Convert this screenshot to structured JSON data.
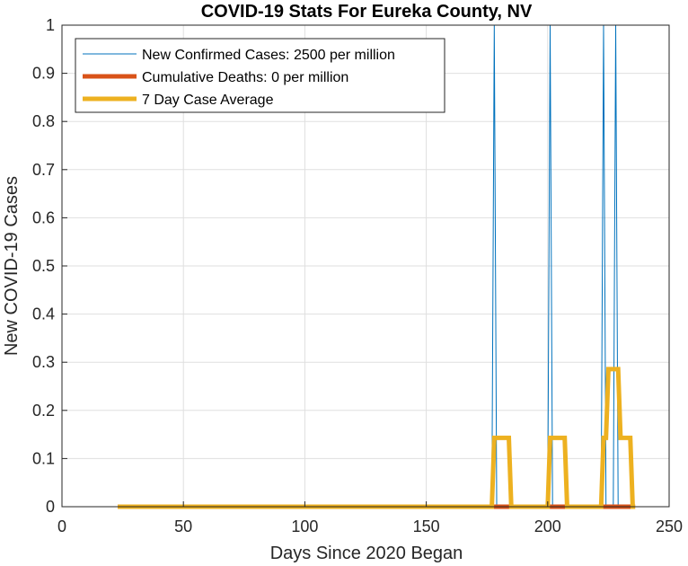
{
  "chart_data": {
    "type": "line",
    "title": "COVID-19 Stats For Eureka County, NV",
    "xlabel": "Days Since 2020 Began",
    "ylabel": "New COVID-19 Cases",
    "xlim": [
      0,
      250
    ],
    "ylim": [
      0,
      1
    ],
    "x_ticks": [
      "0",
      "50",
      "100",
      "150",
      "200",
      "250"
    ],
    "y_ticks": [
      "0",
      "0.1",
      "0.2",
      "0.3",
      "0.4",
      "0.5",
      "0.6",
      "0.7",
      "0.8",
      "0.9",
      "1"
    ],
    "grid": true,
    "legend_position": "top-left",
    "series": [
      {
        "name": "New Confirmed Cases: 2500 per million",
        "color": "#0072BD",
        "points": [
          [
            23,
            0
          ],
          [
            177,
            0
          ],
          [
            178,
            1
          ],
          [
            179,
            0
          ],
          [
            200,
            0
          ],
          [
            201,
            1
          ],
          [
            202,
            0
          ],
          [
            222,
            0
          ],
          [
            223,
            1
          ],
          [
            224,
            0
          ],
          [
            227,
            0
          ],
          [
            228,
            1
          ],
          [
            229,
            0
          ],
          [
            236,
            0
          ]
        ]
      },
      {
        "name": "Cumulative Deaths: 0 per million",
        "color": "#D95319",
        "points": [
          [
            23,
            0
          ],
          [
            236,
            0
          ]
        ]
      },
      {
        "name": "7 Day Case Average",
        "color": "#EDB120",
        "points": [
          [
            23,
            0
          ],
          [
            177,
            0
          ],
          [
            178,
            0.1429
          ],
          [
            184,
            0.1429
          ],
          [
            185,
            0
          ],
          [
            200,
            0
          ],
          [
            201,
            0.1429
          ],
          [
            207,
            0.1429
          ],
          [
            208,
            0
          ],
          [
            222,
            0
          ],
          [
            223,
            0.1429
          ],
          [
            224,
            0.1429
          ],
          [
            225,
            0.2857
          ],
          [
            229,
            0.2857
          ],
          [
            230,
            0.1429
          ],
          [
            234,
            0.1429
          ],
          [
            235,
            0
          ],
          [
            236,
            0
          ]
        ]
      }
    ]
  }
}
